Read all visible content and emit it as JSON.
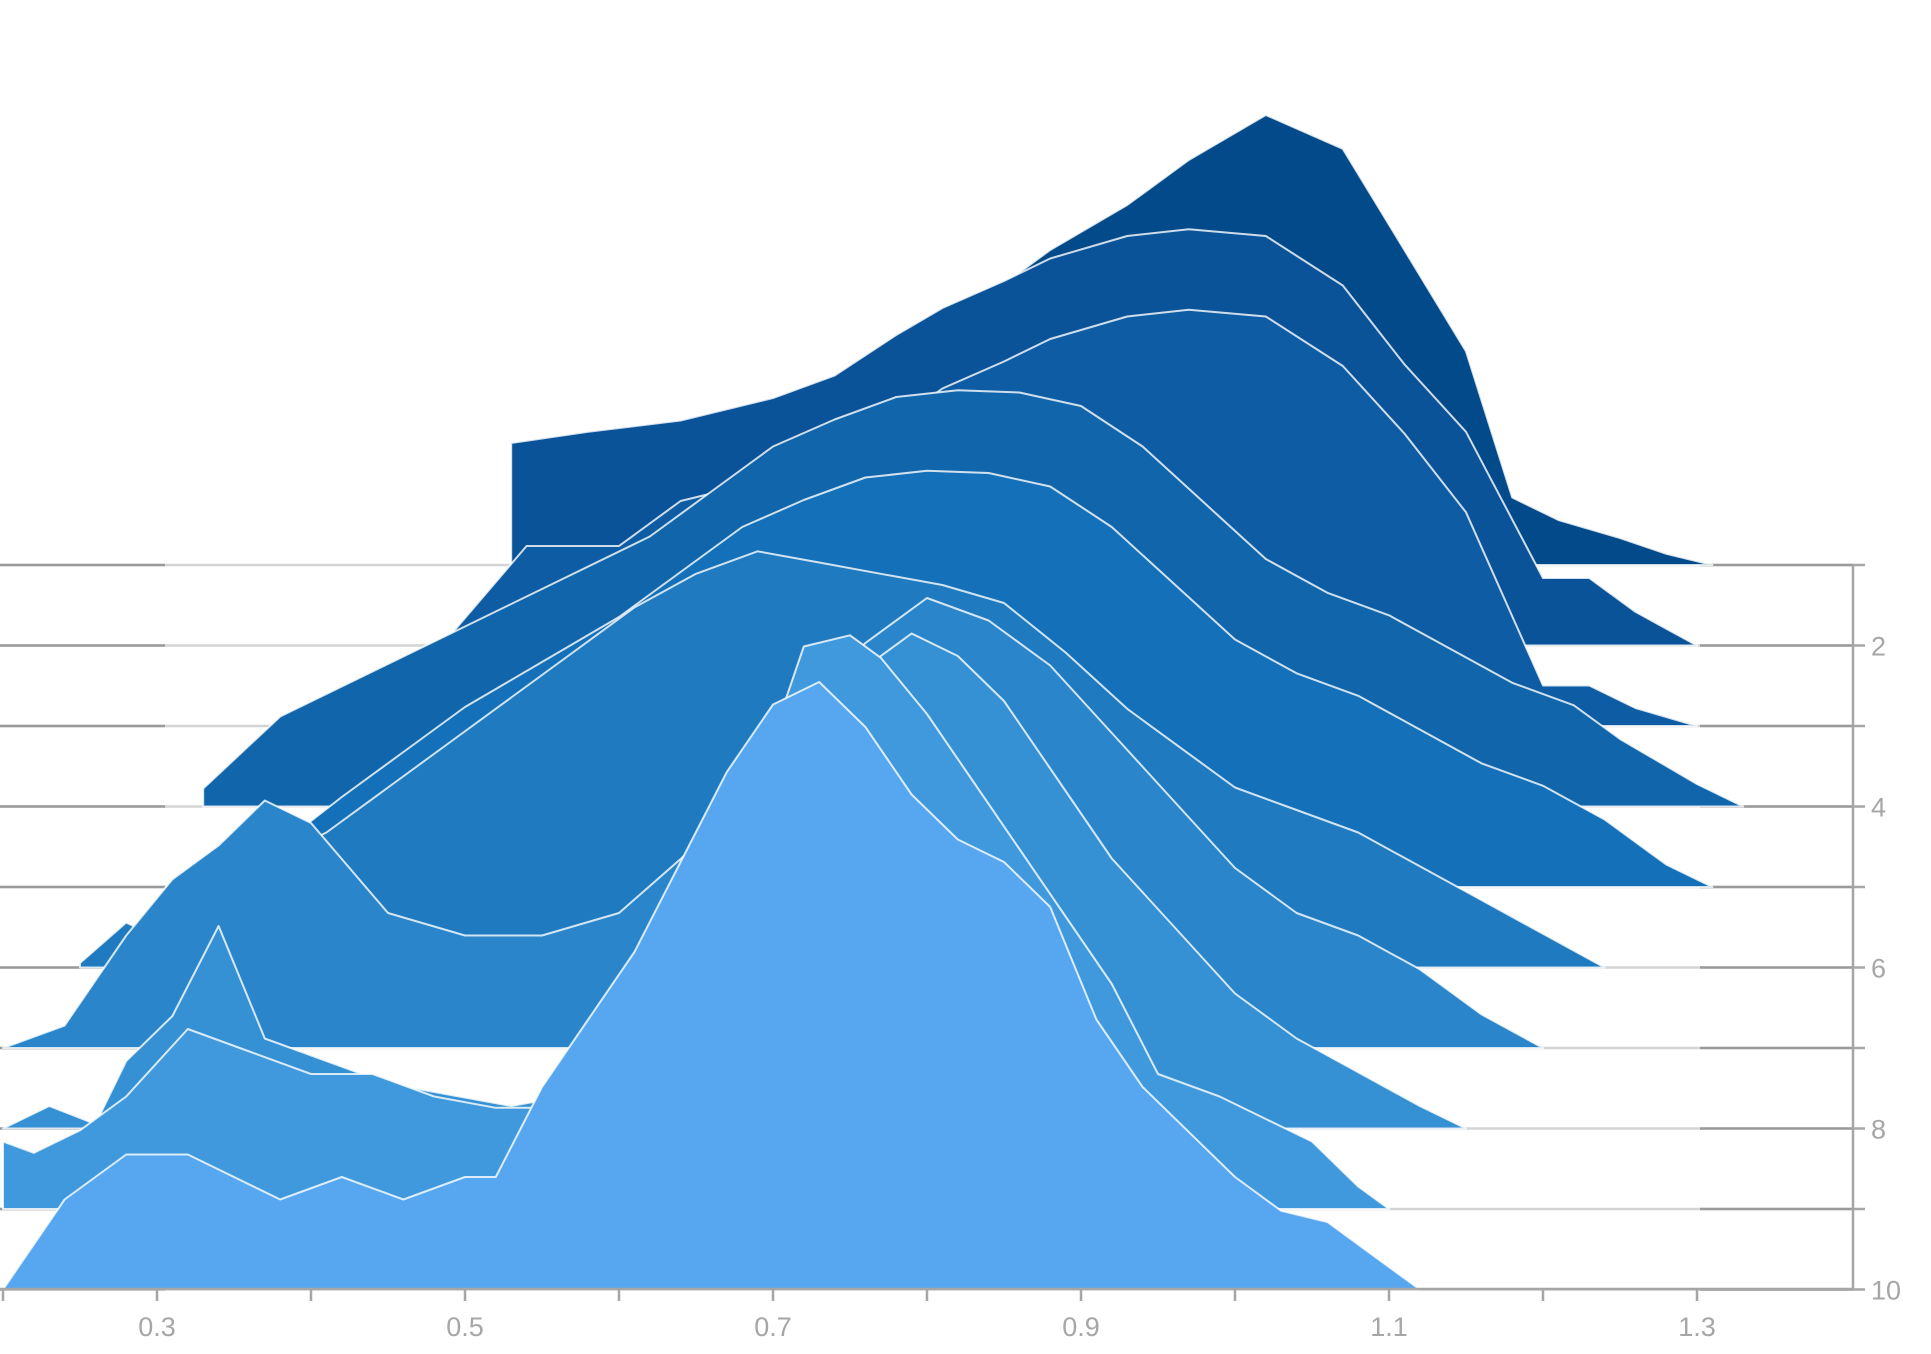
{
  "chart_data": {
    "type": "area",
    "title": "",
    "xlabel": "",
    "ylabel": "",
    "xlim": [
      0.2,
      1.3
    ],
    "x_ticks": [
      "0.3",
      "0.5",
      "0.7",
      "0.9",
      "1.1",
      "1.3"
    ],
    "y_ticks": [
      "2",
      "4",
      "6",
      "8",
      "10"
    ],
    "row_count": 10,
    "colors": [
      "#034a8a",
      "#0b5399",
      "#0d5ca4",
      "#1065ab",
      "#1470b8",
      "#1f7ac0",
      "#2a85cb",
      "#3590d4",
      "#4099dc",
      "#57a6f0"
    ],
    "series": [
      {
        "row": 1,
        "values": [
          [
            0.53,
            0.45
          ],
          [
            0.59,
            0.5
          ],
          [
            0.65,
            0.5
          ],
          [
            0.7,
            0.6
          ],
          [
            0.74,
            0.75
          ],
          [
            0.78,
            0.95
          ],
          [
            0.81,
            1.1
          ],
          [
            0.85,
            1.25
          ],
          [
            0.88,
            1.4
          ],
          [
            0.93,
            1.6
          ],
          [
            0.97,
            1.8
          ],
          [
            1.02,
            2.0
          ],
          [
            1.07,
            1.85
          ],
          [
            1.11,
            1.4
          ],
          [
            1.15,
            0.95
          ],
          [
            1.18,
            0.3
          ],
          [
            1.21,
            0.2
          ],
          [
            1.25,
            0.12
          ],
          [
            1.28,
            0.05
          ],
          [
            1.31,
            0.0
          ]
        ]
      },
      {
        "row": 2,
        "values": [
          [
            0.53,
            0.9
          ],
          [
            0.58,
            0.95
          ],
          [
            0.64,
            1.0
          ],
          [
            0.7,
            1.1
          ],
          [
            0.74,
            1.2
          ],
          [
            0.78,
            1.38
          ],
          [
            0.81,
            1.5
          ],
          [
            0.85,
            1.62
          ],
          [
            0.88,
            1.72
          ],
          [
            0.93,
            1.82
          ],
          [
            0.97,
            1.85
          ],
          [
            1.02,
            1.82
          ],
          [
            1.07,
            1.6
          ],
          [
            1.11,
            1.25
          ],
          [
            1.15,
            0.95
          ],
          [
            1.2,
            0.3
          ],
          [
            1.23,
            0.3
          ],
          [
            1.26,
            0.15
          ],
          [
            1.3,
            0.0
          ]
        ]
      },
      {
        "row": 3,
        "values": [
          [
            0.44,
            0.02
          ],
          [
            0.49,
            0.4
          ],
          [
            0.54,
            0.8
          ],
          [
            0.6,
            0.8
          ],
          [
            0.64,
            1.0
          ],
          [
            0.7,
            1.1
          ],
          [
            0.74,
            1.25
          ],
          [
            0.78,
            1.35
          ],
          [
            0.81,
            1.5
          ],
          [
            0.85,
            1.62
          ],
          [
            0.88,
            1.72
          ],
          [
            0.93,
            1.82
          ],
          [
            0.97,
            1.85
          ],
          [
            1.02,
            1.82
          ],
          [
            1.07,
            1.6
          ],
          [
            1.11,
            1.3
          ],
          [
            1.15,
            0.95
          ],
          [
            1.2,
            0.18
          ],
          [
            1.23,
            0.18
          ],
          [
            1.26,
            0.08
          ],
          [
            1.3,
            0.0
          ]
        ]
      },
      {
        "row": 4,
        "values": [
          [
            0.33,
            0.08
          ],
          [
            0.38,
            0.4
          ],
          [
            0.44,
            0.6
          ],
          [
            0.5,
            0.8
          ],
          [
            0.56,
            1.0
          ],
          [
            0.62,
            1.2
          ],
          [
            0.66,
            1.4
          ],
          [
            0.7,
            1.6
          ],
          [
            0.74,
            1.72
          ],
          [
            0.78,
            1.82
          ],
          [
            0.82,
            1.85
          ],
          [
            0.86,
            1.84
          ],
          [
            0.9,
            1.78
          ],
          [
            0.94,
            1.6
          ],
          [
            0.98,
            1.35
          ],
          [
            1.02,
            1.1
          ],
          [
            1.06,
            0.95
          ],
          [
            1.1,
            0.85
          ],
          [
            1.14,
            0.7
          ],
          [
            1.18,
            0.55
          ],
          [
            1.22,
            0.45
          ],
          [
            1.25,
            0.3
          ],
          [
            1.3,
            0.1
          ],
          [
            1.33,
            0.0
          ]
        ]
      },
      {
        "row": 5,
        "values": [
          [
            0.36,
            0.08
          ],
          [
            0.42,
            0.4
          ],
          [
            0.46,
            0.6
          ],
          [
            0.5,
            0.8
          ],
          [
            0.55,
            1.0
          ],
          [
            0.6,
            1.2
          ],
          [
            0.64,
            1.4
          ],
          [
            0.68,
            1.6
          ],
          [
            0.72,
            1.72
          ],
          [
            0.76,
            1.82
          ],
          [
            0.8,
            1.85
          ],
          [
            0.84,
            1.84
          ],
          [
            0.88,
            1.78
          ],
          [
            0.92,
            1.6
          ],
          [
            0.96,
            1.35
          ],
          [
            1.0,
            1.1
          ],
          [
            1.04,
            0.95
          ],
          [
            1.08,
            0.85
          ],
          [
            1.12,
            0.7
          ],
          [
            1.16,
            0.55
          ],
          [
            1.2,
            0.45
          ],
          [
            1.24,
            0.3
          ],
          [
            1.28,
            0.1
          ],
          [
            1.31,
            0.0
          ]
        ]
      },
      {
        "row": 6,
        "values": [
          [
            0.25,
            0.02
          ],
          [
            0.28,
            0.2
          ],
          [
            0.31,
            0.1
          ],
          [
            0.33,
            0.3
          ],
          [
            0.36,
            0.3
          ],
          [
            0.38,
            0.5
          ],
          [
            0.41,
            0.6
          ],
          [
            0.45,
            0.8
          ],
          [
            0.49,
            1.0
          ],
          [
            0.53,
            1.2
          ],
          [
            0.57,
            1.4
          ],
          [
            0.61,
            1.6
          ],
          [
            0.65,
            1.75
          ],
          [
            0.69,
            1.85
          ],
          [
            0.73,
            1.8
          ],
          [
            0.77,
            1.75
          ],
          [
            0.81,
            1.7
          ],
          [
            0.85,
            1.62
          ],
          [
            0.89,
            1.4
          ],
          [
            0.93,
            1.15
          ],
          [
            0.97,
            0.95
          ],
          [
            1.0,
            0.8
          ],
          [
            1.04,
            0.7
          ],
          [
            1.08,
            0.6
          ],
          [
            1.12,
            0.45
          ],
          [
            1.16,
            0.3
          ],
          [
            1.2,
            0.15
          ],
          [
            1.24,
            0.0
          ]
        ]
      },
      {
        "row": 7,
        "values": [
          [
            0.2,
            0.0
          ],
          [
            0.24,
            0.1
          ],
          [
            0.28,
            0.5
          ],
          [
            0.31,
            0.75
          ],
          [
            0.34,
            0.9
          ],
          [
            0.37,
            1.1
          ],
          [
            0.4,
            1.0
          ],
          [
            0.45,
            0.6
          ],
          [
            0.5,
            0.5
          ],
          [
            0.55,
            0.5
          ],
          [
            0.6,
            0.6
          ],
          [
            0.65,
            0.9
          ],
          [
            0.68,
            1.2
          ],
          [
            0.72,
            1.5
          ],
          [
            0.76,
            1.8
          ],
          [
            0.8,
            2.0
          ],
          [
            0.84,
            1.9
          ],
          [
            0.88,
            1.7
          ],
          [
            0.92,
            1.4
          ],
          [
            0.96,
            1.1
          ],
          [
            1.0,
            0.8
          ],
          [
            1.04,
            0.6
          ],
          [
            1.08,
            0.5
          ],
          [
            1.12,
            0.35
          ],
          [
            1.16,
            0.15
          ],
          [
            1.2,
            0.0
          ]
        ]
      },
      {
        "row": 8,
        "values": [
          [
            0.2,
            0.0
          ],
          [
            0.23,
            0.1
          ],
          [
            0.26,
            0.02
          ],
          [
            0.28,
            0.3
          ],
          [
            0.31,
            0.5
          ],
          [
            0.34,
            0.9
          ],
          [
            0.37,
            0.4
          ],
          [
            0.41,
            0.3
          ],
          [
            0.45,
            0.2
          ],
          [
            0.49,
            0.15
          ],
          [
            0.53,
            0.1
          ],
          [
            0.57,
            0.15
          ],
          [
            0.61,
            0.6
          ],
          [
            0.65,
            1.0
          ],
          [
            0.68,
            1.3
          ],
          [
            0.72,
            1.8
          ],
          [
            0.75,
            2.0
          ],
          [
            0.79,
            2.2
          ],
          [
            0.82,
            2.1
          ],
          [
            0.85,
            1.9
          ],
          [
            0.88,
            1.6
          ],
          [
            0.92,
            1.2
          ],
          [
            0.96,
            0.9
          ],
          [
            1.0,
            0.6
          ],
          [
            1.04,
            0.4
          ],
          [
            1.08,
            0.25
          ],
          [
            1.12,
            0.1
          ],
          [
            1.15,
            0.0
          ]
        ]
      },
      {
        "row": 9,
        "values": [
          [
            0.2,
            0.3
          ],
          [
            0.22,
            0.25
          ],
          [
            0.25,
            0.35
          ],
          [
            0.28,
            0.5
          ],
          [
            0.32,
            0.8
          ],
          [
            0.36,
            0.7
          ],
          [
            0.4,
            0.6
          ],
          [
            0.44,
            0.6
          ],
          [
            0.48,
            0.5
          ],
          [
            0.52,
            0.45
          ],
          [
            0.55,
            0.45
          ],
          [
            0.57,
            0.5
          ],
          [
            0.6,
            0.8
          ],
          [
            0.63,
            1.2
          ],
          [
            0.66,
            1.5
          ],
          [
            0.69,
            1.9
          ],
          [
            0.72,
            2.5
          ],
          [
            0.75,
            2.55
          ],
          [
            0.77,
            2.45
          ],
          [
            0.8,
            2.2
          ],
          [
            0.83,
            1.9
          ],
          [
            0.86,
            1.6
          ],
          [
            0.89,
            1.3
          ],
          [
            0.92,
            1.0
          ],
          [
            0.95,
            0.6
          ],
          [
            0.99,
            0.5
          ],
          [
            1.02,
            0.4
          ],
          [
            1.05,
            0.3
          ],
          [
            1.08,
            0.1
          ],
          [
            1.1,
            0.0
          ]
        ]
      },
      {
        "row": 10,
        "values": [
          [
            0.2,
            0.0
          ],
          [
            0.24,
            0.4
          ],
          [
            0.28,
            0.6
          ],
          [
            0.32,
            0.6
          ],
          [
            0.35,
            0.5
          ],
          [
            0.38,
            0.4
          ],
          [
            0.42,
            0.5
          ],
          [
            0.46,
            0.4
          ],
          [
            0.5,
            0.5
          ],
          [
            0.52,
            0.5
          ],
          [
            0.55,
            0.9
          ],
          [
            0.58,
            1.2
          ],
          [
            0.61,
            1.5
          ],
          [
            0.64,
            1.9
          ],
          [
            0.67,
            2.3
          ],
          [
            0.7,
            2.6
          ],
          [
            0.73,
            2.7
          ],
          [
            0.76,
            2.5
          ],
          [
            0.79,
            2.2
          ],
          [
            0.82,
            2.0
          ],
          [
            0.85,
            1.9
          ],
          [
            0.88,
            1.7
          ],
          [
            0.91,
            1.2
          ],
          [
            0.94,
            0.9
          ],
          [
            0.97,
            0.7
          ],
          [
            1.0,
            0.5
          ],
          [
            1.03,
            0.35
          ],
          [
            1.06,
            0.3
          ],
          [
            1.09,
            0.15
          ],
          [
            1.12,
            0.0
          ]
        ]
      }
    ]
  }
}
